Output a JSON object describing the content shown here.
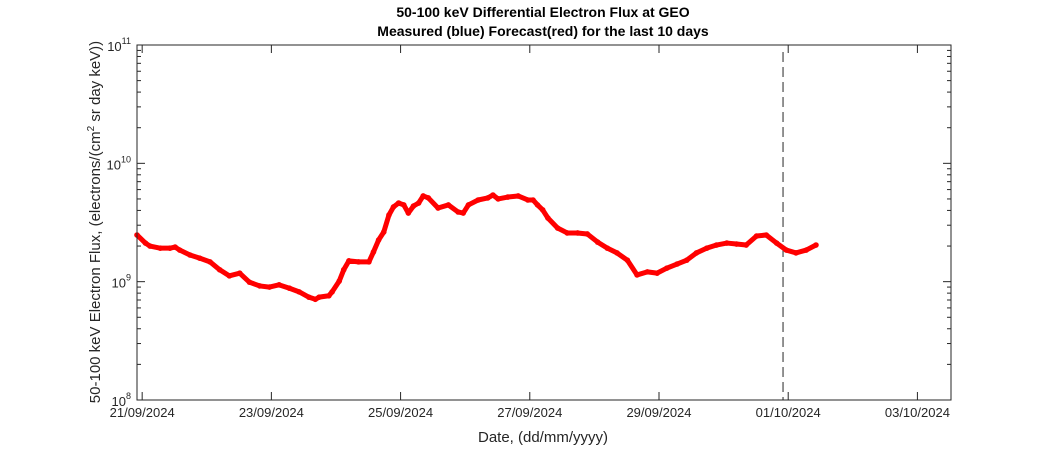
{
  "chart_data": {
    "type": "scatter",
    "title": [
      "50-100 keV Differential Electron Flux at GEO",
      "Measured (blue) Forecast(red) for the last 10 days"
    ],
    "xlabel": "Date, (dd/mm/yyyy)",
    "ylabel": "50-100 keV Electron Flux, (electrons/(cm",
    "ylabel_sup": "2",
    "ylabel_tail": " sr day keV))",
    "x_units": "days since 21/09/2024 00:00",
    "xlim": [
      -0.08,
      12.52
    ],
    "ylim": [
      100000000.0,
      100000000000.0
    ],
    "yscale": "log",
    "x_ticks": [
      {
        "value": 0,
        "label": "21/09/2024"
      },
      {
        "value": 2,
        "label": "23/09/2024"
      },
      {
        "value": 4,
        "label": "25/09/2024"
      },
      {
        "value": 6,
        "label": "27/09/2024"
      },
      {
        "value": 8,
        "label": "29/09/2024"
      },
      {
        "value": 10,
        "label": "01/10/2024"
      },
      {
        "value": 12,
        "label": "03/10/2024"
      }
    ],
    "y_ticks": [
      {
        "value": 100000000.0,
        "base": "10",
        "exp": "8"
      },
      {
        "value": 1000000000.0,
        "base": "10",
        "exp": "9"
      },
      {
        "value": 10000000000.0,
        "base": "10",
        "exp": "10"
      },
      {
        "value": 100000000000.0,
        "base": "10",
        "exp": "11"
      }
    ],
    "now_line_x": 9.92,
    "grid": false,
    "series": [
      {
        "name": "Forecast",
        "color": "#ff0000",
        "x": [
          -0.08,
          0.05,
          0.12,
          0.28,
          0.43,
          0.51,
          0.58,
          0.74,
          0.89,
          1.05,
          1.2,
          1.35,
          1.51,
          1.66,
          1.82,
          1.97,
          2.12,
          2.28,
          2.43,
          2.58,
          2.68,
          2.74,
          2.89,
          2.94,
          3.05,
          3.12,
          3.2,
          3.35,
          3.51,
          3.58,
          3.66,
          3.74,
          3.82,
          3.89,
          3.97,
          4.05,
          4.12,
          4.2,
          4.28,
          4.35,
          4.43,
          4.58,
          4.74,
          4.89,
          4.97,
          5.05,
          5.2,
          5.35,
          5.43,
          5.51,
          5.66,
          5.82,
          5.97,
          6.05,
          6.12,
          6.2,
          6.28,
          6.43,
          6.58,
          6.74,
          6.89,
          7.05,
          7.2,
          7.35,
          7.51,
          7.66,
          7.82,
          7.97,
          8.12,
          8.28,
          8.43,
          8.58,
          8.74,
          8.89,
          9.05,
          9.2,
          9.35,
          9.51,
          9.66,
          9.82,
          9.97,
          10.12,
          10.28,
          10.43
        ],
        "y": [
          2480000000.0,
          2120000000.0,
          2000000000.0,
          1920000000.0,
          1920000000.0,
          1960000000.0,
          1850000000.0,
          1680000000.0,
          1580000000.0,
          1470000000.0,
          1260000000.0,
          1120000000.0,
          1180000000.0,
          990000000.0,
          920000000.0,
          900000000.0,
          940000000.0,
          880000000.0,
          820000000.0,
          740000000.0,
          710000000.0,
          740000000.0,
          760000000.0,
          820000000.0,
          1010000000.0,
          1260000000.0,
          1500000000.0,
          1470000000.0,
          1470000000.0,
          1780000000.0,
          2250000000.0,
          2630000000.0,
          3660000000.0,
          4280000000.0,
          4620000000.0,
          4450000000.0,
          3800000000.0,
          4360000000.0,
          4620000000.0,
          5300000000.0,
          5100000000.0,
          4190000000.0,
          4450000000.0,
          3880000000.0,
          3800000000.0,
          4450000000.0,
          4900000000.0,
          5100000000.0,
          5400000000.0,
          5000000000.0,
          5190000000.0,
          5300000000.0,
          4900000000.0,
          4900000000.0,
          4450000000.0,
          4040000000.0,
          3450000000.0,
          2840000000.0,
          2580000000.0,
          2580000000.0,
          2530000000.0,
          2160000000.0,
          1920000000.0,
          1750000000.0,
          1520000000.0,
          1140000000.0,
          1210000000.0,
          1180000000.0,
          1300000000.0,
          1410000000.0,
          1520000000.0,
          1750000000.0,
          1920000000.0,
          2040000000.0,
          2120000000.0,
          2080000000.0,
          2040000000.0,
          2430000000.0,
          2480000000.0,
          2120000000.0,
          1850000000.0,
          1750000000.0,
          1850000000.0,
          2040000000.0
        ]
      }
    ]
  }
}
